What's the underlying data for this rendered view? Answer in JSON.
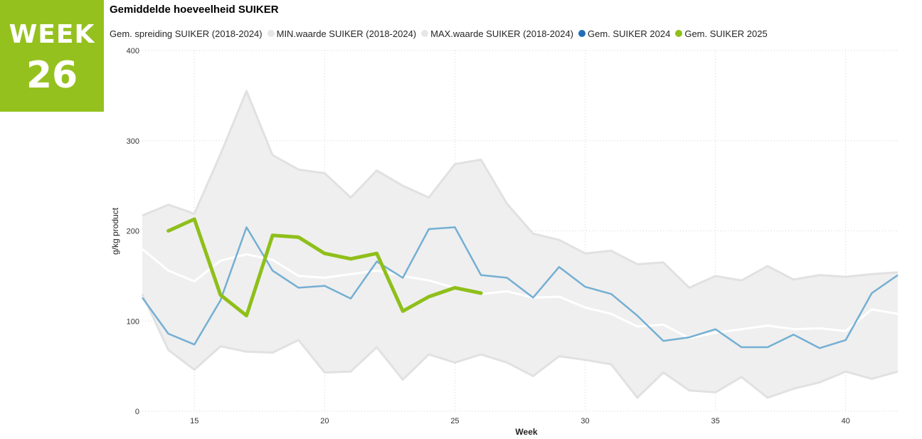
{
  "badge": {
    "line1": "WEEK",
    "line2": "26"
  },
  "colors": {
    "badge": "#95c11f",
    "band": "#efefef",
    "band_edge": "#e1e1e1",
    "avg": "#ffffff",
    "s2024": "#74afd3",
    "s2025": "#8fbf1a"
  },
  "chart_data": {
    "type": "line",
    "title": "Gemiddelde hoeveelheid SUIKER",
    "xlabel": "Week",
    "ylabel": "g/kg product",
    "xlim": [
      13,
      42
    ],
    "ylim": [
      0,
      400
    ],
    "x_ticks": [
      "15",
      "20",
      "25",
      "30",
      "35",
      "40"
    ],
    "y_ticks": [
      "0",
      "100",
      "200",
      "300",
      "400"
    ],
    "grid": true,
    "legend_position": "top",
    "legend": [
      {
        "label": "Gem. spreiding SUIKER (2018-2024)",
        "color": "#e6e6e6"
      },
      {
        "label": "MIN.waarde SUIKER (2018-2024)",
        "color": "#e6e6e6"
      },
      {
        "label": "MAX.waarde SUIKER (2018-2024)",
        "color": "#e6e6e6"
      },
      {
        "label": "Gem. SUIKER 2024",
        "color": "#1f6fb8"
      },
      {
        "label": "Gem. SUIKER 2025",
        "color": "#8fbf1a"
      }
    ],
    "weeks": [
      13,
      14,
      15,
      16,
      17,
      18,
      19,
      20,
      21,
      22,
      23,
      24,
      25,
      26,
      27,
      28,
      29,
      30,
      31,
      32,
      33,
      34,
      35,
      36,
      37,
      38,
      39,
      40,
      41,
      42
    ],
    "series": [
      {
        "name": "MAX.waarde SUIKER (2018-2024)",
        "values": [
          217,
          229,
          219,
          285,
          355,
          284,
          268,
          264,
          237,
          267,
          250,
          237,
          274,
          279,
          230,
          197,
          190,
          175,
          178,
          163,
          165,
          137,
          150,
          145,
          161,
          146,
          151,
          149,
          152,
          154
        ]
      },
      {
        "name": "MIN.waarde SUIKER (2018-2024)",
        "values": [
          130,
          68,
          46,
          72,
          66,
          65,
          79,
          43,
          44,
          71,
          35,
          63,
          54,
          63,
          54,
          39,
          61,
          57,
          52,
          15,
          43,
          23,
          21,
          38,
          15,
          25,
          32,
          44,
          36,
          44
        ]
      },
      {
        "name": "Gem. spreiding SUIKER (2018-2024)",
        "values": [
          180,
          156,
          144,
          167,
          174,
          168,
          150,
          148,
          152,
          156,
          150,
          145,
          137,
          130,
          133,
          126,
          127,
          115,
          108,
          94,
          96,
          81,
          87,
          91,
          95,
          91,
          92,
          89,
          113,
          108
        ]
      },
      {
        "name": "Gem. SUIKER 2024",
        "values": [
          126,
          86,
          74,
          123,
          204,
          156,
          137,
          139,
          125,
          166,
          148,
          202,
          204,
          151,
          148,
          126,
          160,
          138,
          130,
          106,
          78,
          82,
          91,
          71,
          71,
          85,
          70,
          79,
          131,
          151
        ]
      },
      {
        "name": "Gem. SUIKER 2025",
        "weeks": [
          14,
          15,
          16,
          17,
          18,
          19,
          20,
          21,
          22,
          23,
          24,
          25,
          26
        ],
        "values": [
          200,
          213,
          129,
          106,
          195,
          193,
          175,
          169,
          175,
          111,
          127,
          137,
          131
        ]
      }
    ]
  }
}
